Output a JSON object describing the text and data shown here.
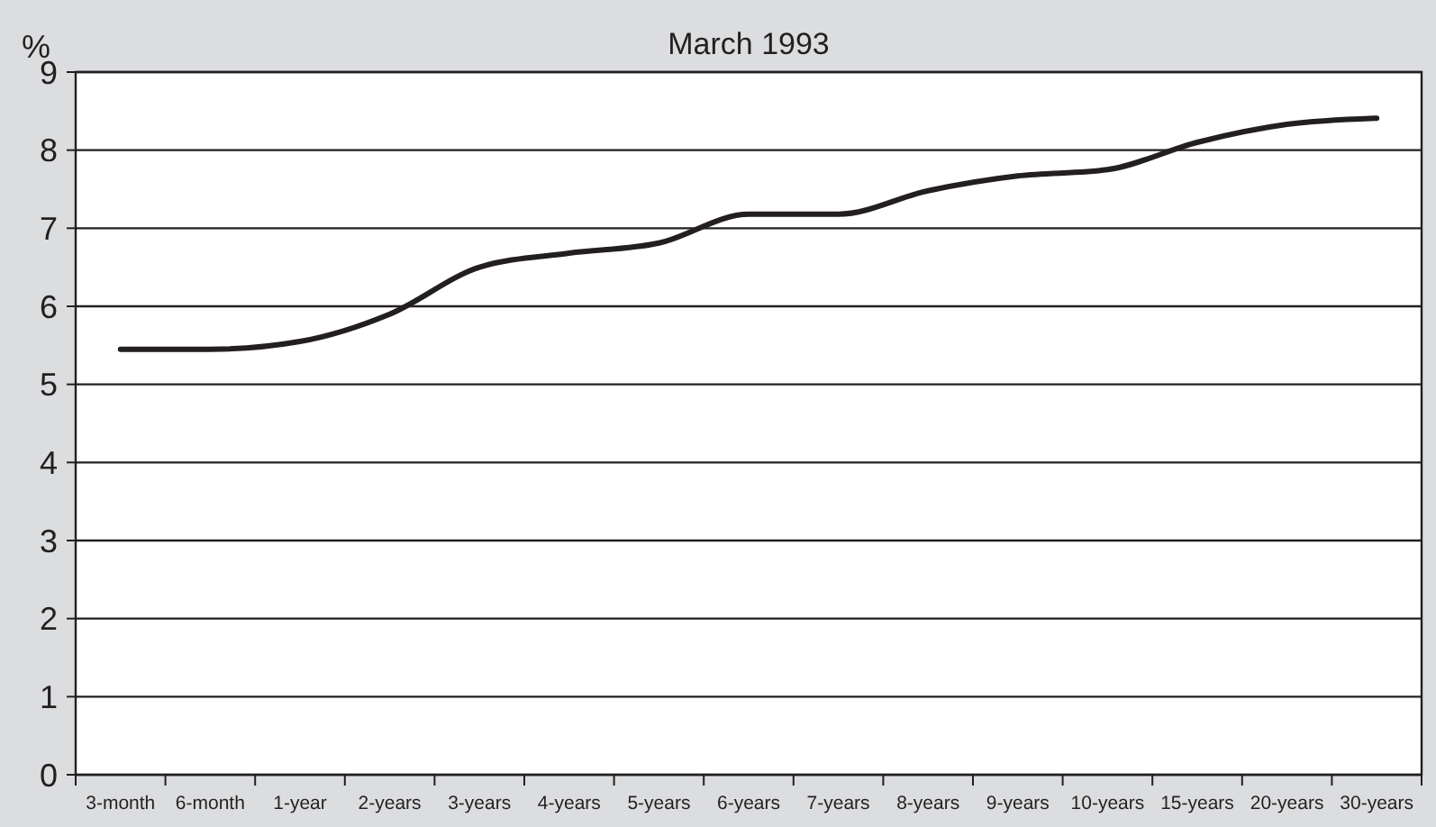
{
  "chart_data": {
    "type": "line",
    "title": "March 1993",
    "ylabel": "%",
    "categories": [
      "3-month",
      "6-month",
      "1-year",
      "2-years",
      "3-years",
      "4-years",
      "5-years",
      "6-years",
      "7-years",
      "8-years",
      "9-years",
      "10-years",
      "15-years",
      "20-years",
      "30-years"
    ],
    "series": [
      {
        "color": "#231f20",
        "values": [
          5.45,
          5.45,
          5.55,
          5.9,
          6.5,
          6.68,
          6.81,
          7.18,
          7.18,
          7.48,
          7.67,
          7.75,
          8.1,
          8.33,
          8.41
        ]
      }
    ],
    "ylim": [
      0,
      9
    ],
    "yticks": [
      0,
      1,
      2,
      3,
      4,
      5,
      6,
      7,
      8,
      9
    ],
    "grid": "y",
    "marker": "none",
    "line_style": "solid"
  }
}
